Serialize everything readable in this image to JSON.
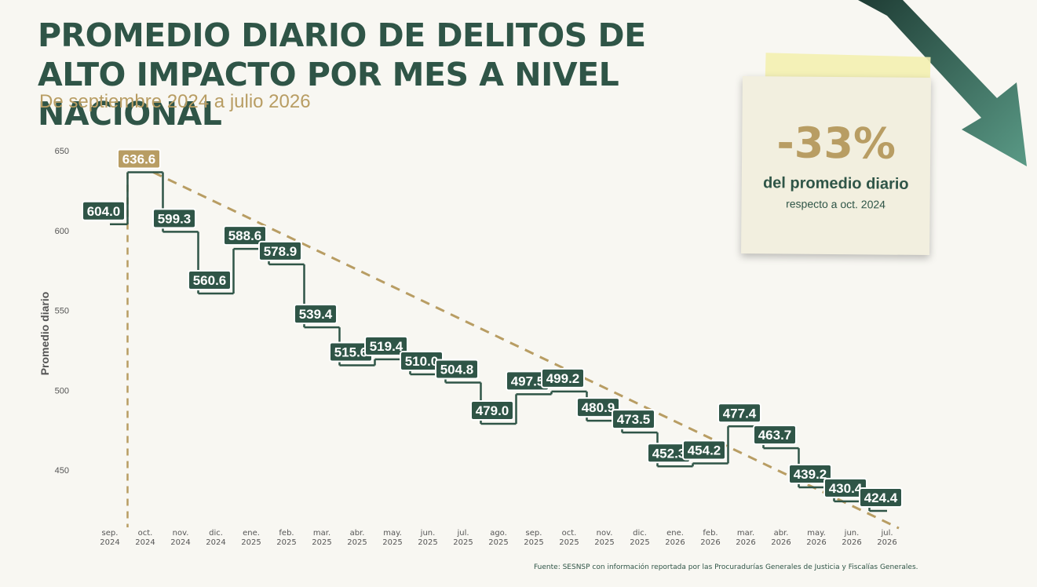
{
  "chart_data": {
    "type": "step",
    "title": "PROMEDIO DIARIO DE DELITOS DE ALTO IMPACTO POR MES A NIVEL NACIONAL",
    "subtitle": "De septiembre 2024 a julio 2026",
    "y_label": "Promedio diario",
    "source": "Fuente: SESNSP con información reportada por las Procuradurías Generales de Justicia y Fiscalías Generales.",
    "annotation": {
      "change": "-33%",
      "line1": "del promedio diario",
      "line2": "respecto a oct. 2024"
    },
    "categories": [
      "sep. 2024",
      "oct. 2024",
      "nov. 2024",
      "dic. 2024",
      "ene. 2025",
      "feb. 2025",
      "mar. 2025",
      "abr. 2025",
      "may. 2025",
      "jun. 2025",
      "jul. 2025",
      "ago. 2025",
      "sep. 2025",
      "oct. 2025",
      "nov. 2025",
      "dic. 2025",
      "ene. 2026",
      "feb. 2026",
      "mar. 2026",
      "abr. 2026",
      "may. 2026",
      "jun. 2026",
      "jul. 2026"
    ],
    "values": [
      604.0,
      636.6,
      599.3,
      560.6,
      588.6,
      578.9,
      539.4,
      515.6,
      519.4,
      510.0,
      504.8,
      479.0,
      497.5,
      499.2,
      480.9,
      473.5,
      452.3,
      454.2,
      477.4,
      463.7,
      439.2,
      430.4,
      424.4
    ],
    "value_labels": [
      "604.0",
      "636.6",
      "599.3",
      "560.6",
      "588.6",
      "578.9",
      "539.4",
      "515.6",
      "519.4",
      "510.0",
      "504.8",
      "479.0",
      "497.5",
      "499.2",
      "480.9",
      "473.5",
      "452.3",
      "454.2",
      "477.4",
      "463.7",
      "439.2",
      "430.4",
      "424.4"
    ],
    "color": "#2f5547",
    "highlight_index": 1,
    "highlight_color": "#b89d63",
    "ylim": [
      420,
      656
    ],
    "yticks": [
      450,
      500,
      550,
      600,
      650
    ]
  }
}
